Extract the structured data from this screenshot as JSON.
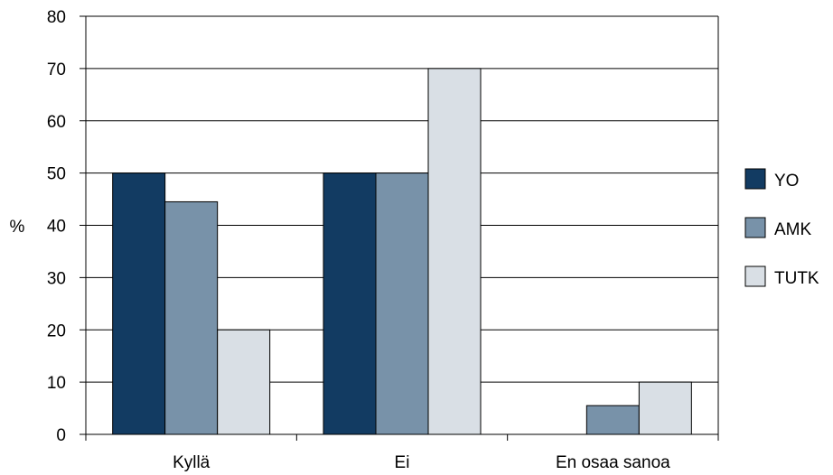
{
  "chart_data": {
    "type": "bar",
    "title": "",
    "xlabel": "",
    "ylabel": "%",
    "ylim": [
      0,
      80
    ],
    "yticks": [
      0,
      10,
      20,
      30,
      40,
      50,
      60,
      70,
      80
    ],
    "grid": true,
    "legend_position": "right",
    "categories": [
      "Kyllä",
      "Ei",
      "En osaa sanoa"
    ],
    "series": [
      {
        "name": "YO",
        "color": "#123b62",
        "values": [
          50,
          50,
          0
        ]
      },
      {
        "name": "AMK",
        "color": "#7892a9",
        "values": [
          44.5,
          50,
          5.5
        ]
      },
      {
        "name": "TUTK",
        "color": "#d9dfe5",
        "values": [
          20,
          70,
          10
        ]
      }
    ]
  }
}
